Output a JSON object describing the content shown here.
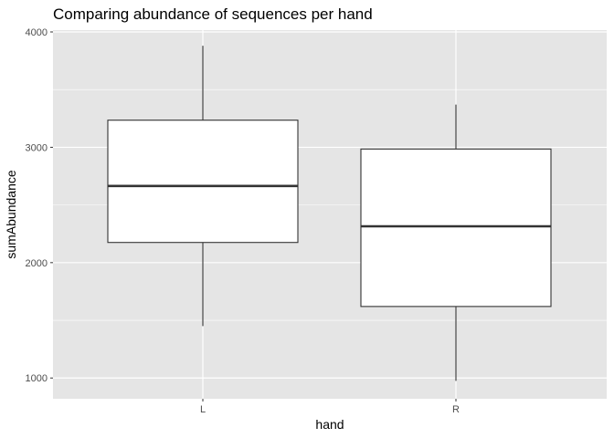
{
  "chart_data": {
    "type": "boxplot",
    "title": "Comparing abundance of sequences per hand",
    "xlabel": "hand",
    "ylabel": "sumAbundance",
    "categories": [
      "L",
      "R"
    ],
    "boxes": [
      {
        "category": "L",
        "whisker_low": 1450,
        "q1": 2175,
        "median": 2665,
        "q3": 3235,
        "whisker_high": 3880
      },
      {
        "category": "R",
        "whisker_low": 975,
        "q1": 1620,
        "median": 2315,
        "q3": 2985,
        "whisker_high": 3370
      }
    ],
    "ylim": [
      820,
      4000
    ],
    "yticks": [
      1000,
      2000,
      3000,
      4000
    ],
    "ytick_labels": [
      "1000",
      "2000",
      "3000",
      "4000"
    ],
    "grid": true,
    "colors": {
      "panel_background": "#e5e5e5",
      "grid": "#ffffff",
      "box_fill": "#ffffff",
      "box_stroke": "#333333",
      "median": "#333333"
    }
  }
}
